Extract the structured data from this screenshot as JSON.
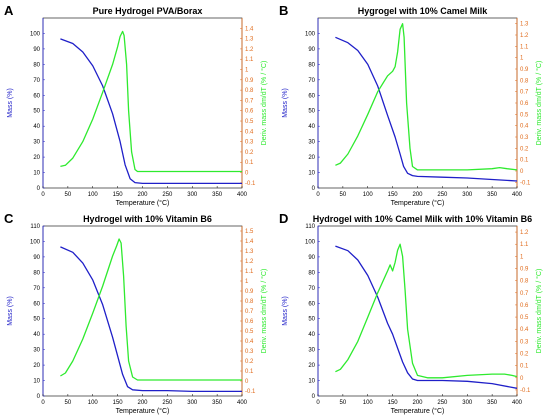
{
  "colors": {
    "mass": "#1f1fc8",
    "derivative": "#2eea2e",
    "left_axis": "#1f1fc8",
    "right_axis": "#e06a1a",
    "axes": "#000000",
    "background": "#ffffff"
  },
  "chart_data": [
    {
      "type": "line",
      "letter": "A",
      "title": "Pure Hydrogel PVA/Borax",
      "xlabel": "Temperature (°C)",
      "ylabel": "Mass (%)",
      "y2label": "Deriv. mass dm/dT (% / °C)",
      "xlim": [
        0,
        400
      ],
      "ylim": [
        0,
        110
      ],
      "y2lim": [
        -0.15,
        1.5
      ],
      "xticks": [
        0,
        50,
        100,
        150,
        200,
        250,
        300,
        350,
        400
      ],
      "yticks": [
        0,
        10,
        20,
        30,
        40,
        50,
        60,
        70,
        80,
        90,
        100
      ],
      "y2ticks": [
        -0.1,
        0,
        0.1,
        0.2,
        0.3,
        0.4,
        0.5,
        0.6,
        0.7,
        0.8,
        0.9,
        1,
        1.1,
        1.2,
        1.3,
        1.4
      ],
      "grid": false,
      "series": [
        {
          "key": "mass",
          "axis": "left",
          "x": [
            35,
            60,
            80,
            100,
            120,
            140,
            155,
            165,
            175,
            185,
            200,
            250,
            300,
            350,
            400
          ],
          "y": [
            96.5,
            93.5,
            88,
            79,
            66,
            48,
            30,
            15,
            6,
            3.5,
            3,
            3,
            3,
            3,
            3
          ]
        },
        {
          "key": "derivative",
          "axis": "right",
          "x": [
            35,
            45,
            60,
            80,
            100,
            120,
            140,
            150,
            155,
            160,
            163,
            168,
            172,
            178,
            185,
            190,
            200,
            250,
            300,
            350,
            400
          ],
          "y": [
            0.06,
            0.07,
            0.14,
            0.3,
            0.52,
            0.78,
            1.05,
            1.22,
            1.32,
            1.37,
            1.33,
            1.05,
            0.6,
            0.2,
            0.03,
            0.01,
            0.01,
            0.01,
            0.01,
            0.01,
            0.01
          ]
        }
      ]
    },
    {
      "type": "line",
      "letter": "B",
      "title": "Hygrogel with 10% Camel Milk",
      "xlabel": "Temperature (°C)",
      "ylabel": "Mass (%)",
      "y2label": "Deriv. mass dm/dT (% / °C)",
      "xlim": [
        0,
        400
      ],
      "ylim": [
        0,
        110
      ],
      "y2lim": [
        -0.15,
        1.35
      ],
      "xticks": [
        0,
        50,
        100,
        150,
        200,
        250,
        300,
        350,
        400
      ],
      "yticks": [
        0,
        10,
        20,
        30,
        40,
        50,
        60,
        70,
        80,
        90,
        100
      ],
      "y2ticks": [
        -0.1,
        0,
        0.1,
        0.2,
        0.3,
        0.4,
        0.5,
        0.6,
        0.7,
        0.8,
        0.9,
        1,
        1.1,
        1.2,
        1.3
      ],
      "grid": false,
      "series": [
        {
          "key": "mass",
          "axis": "left",
          "x": [
            35,
            60,
            80,
            100,
            120,
            140,
            155,
            165,
            172,
            180,
            190,
            200,
            250,
            300,
            350,
            400
          ],
          "y": [
            97.5,
            94,
            89,
            80,
            66,
            47,
            33,
            22,
            14,
            9.5,
            8,
            7.5,
            7,
            6.5,
            5.5,
            4.5
          ]
        },
        {
          "key": "derivative",
          "axis": "right",
          "x": [
            35,
            45,
            60,
            80,
            100,
            120,
            140,
            150,
            155,
            160,
            165,
            170,
            173,
            178,
            185,
            190,
            200,
            250,
            300,
            350,
            365,
            380,
            400
          ],
          "y": [
            0.05,
            0.07,
            0.15,
            0.31,
            0.5,
            0.7,
            0.84,
            0.88,
            0.92,
            1.05,
            1.25,
            1.3,
            1.18,
            0.6,
            0.2,
            0.04,
            0.01,
            0.01,
            0.01,
            0.02,
            0.03,
            0.02,
            0.01
          ]
        }
      ]
    },
    {
      "type": "line",
      "letter": "C",
      "title": "Hydrogel with 10% Vitamin B6",
      "xlabel": "Temperature (°C)",
      "ylabel": "Mass (%)",
      "y2label": "Deriv. mass dm/dT (% / °C)",
      "xlim": [
        0,
        400
      ],
      "ylim": [
        0,
        110
      ],
      "y2lim": [
        -0.15,
        1.55
      ],
      "xticks": [
        0,
        50,
        100,
        150,
        200,
        250,
        300,
        350,
        400
      ],
      "yticks": [
        0,
        10,
        20,
        30,
        40,
        50,
        60,
        70,
        80,
        90,
        100,
        110
      ],
      "y2ticks": [
        -0.1,
        0,
        0.1,
        0.2,
        0.3,
        0.4,
        0.5,
        0.6,
        0.7,
        0.8,
        0.9,
        1,
        1.1,
        1.2,
        1.3,
        1.4,
        1.5
      ],
      "grid": false,
      "series": [
        {
          "key": "mass",
          "axis": "left",
          "x": [
            35,
            60,
            80,
            100,
            120,
            140,
            150,
            160,
            170,
            180,
            200,
            250,
            300,
            350,
            400
          ],
          "y": [
            96.5,
            93,
            86,
            75,
            59,
            38,
            26,
            14,
            6,
            4,
            3.5,
            3.5,
            3,
            3,
            3
          ]
        },
        {
          "key": "derivative",
          "axis": "right",
          "x": [
            35,
            45,
            60,
            80,
            100,
            120,
            140,
            148,
            153,
            157,
            162,
            167,
            172,
            180,
            190,
            200,
            250,
            300,
            350,
            400
          ],
          "y": [
            0.05,
            0.08,
            0.2,
            0.42,
            0.68,
            0.95,
            1.25,
            1.35,
            1.42,
            1.38,
            1.05,
            0.55,
            0.2,
            0.04,
            0.01,
            0.01,
            0.01,
            0.01,
            0.01,
            0.01
          ]
        }
      ]
    },
    {
      "type": "line",
      "letter": "D",
      "title": "Hydrogel with 10% Camel Milk with 10% Vitamin B6",
      "xlabel": "Temperature (°C)",
      "ylabel": "Mass (%)",
      "y2label": "Deriv. mass dm/dT (% / °C)",
      "xlim": [
        0,
        400
      ],
      "ylim": [
        0,
        110
      ],
      "y2lim": [
        -0.15,
        1.25
      ],
      "xticks": [
        0,
        50,
        100,
        150,
        200,
        250,
        300,
        350,
        400
      ],
      "yticks": [
        0,
        10,
        20,
        30,
        40,
        50,
        60,
        70,
        80,
        90,
        100,
        110
      ],
      "y2ticks": [
        -0.1,
        0,
        0.1,
        0.2,
        0.3,
        0.4,
        0.5,
        0.6,
        0.7,
        0.8,
        0.9,
        1,
        1.1,
        1.2
      ],
      "grid": false,
      "series": [
        {
          "key": "mass",
          "axis": "left",
          "x": [
            35,
            60,
            80,
            100,
            120,
            140,
            150,
            160,
            170,
            180,
            190,
            200,
            250,
            300,
            350,
            400
          ],
          "y": [
            97,
            94,
            88,
            78,
            64,
            47,
            40,
            31,
            22,
            15,
            11,
            10,
            10,
            9.5,
            8,
            5
          ]
        },
        {
          "key": "derivative",
          "axis": "right",
          "x": [
            35,
            45,
            60,
            80,
            100,
            120,
            140,
            145,
            150,
            155,
            160,
            165,
            170,
            175,
            180,
            190,
            200,
            220,
            250,
            300,
            350,
            375,
            390,
            400
          ],
          "y": [
            0.05,
            0.07,
            0.15,
            0.3,
            0.5,
            0.7,
            0.88,
            0.93,
            0.88,
            0.95,
            1.05,
            1.1,
            1.0,
            0.72,
            0.4,
            0.12,
            0.02,
            0.0,
            0.0,
            0.02,
            0.03,
            0.03,
            0.02,
            0.01
          ]
        }
      ]
    }
  ]
}
